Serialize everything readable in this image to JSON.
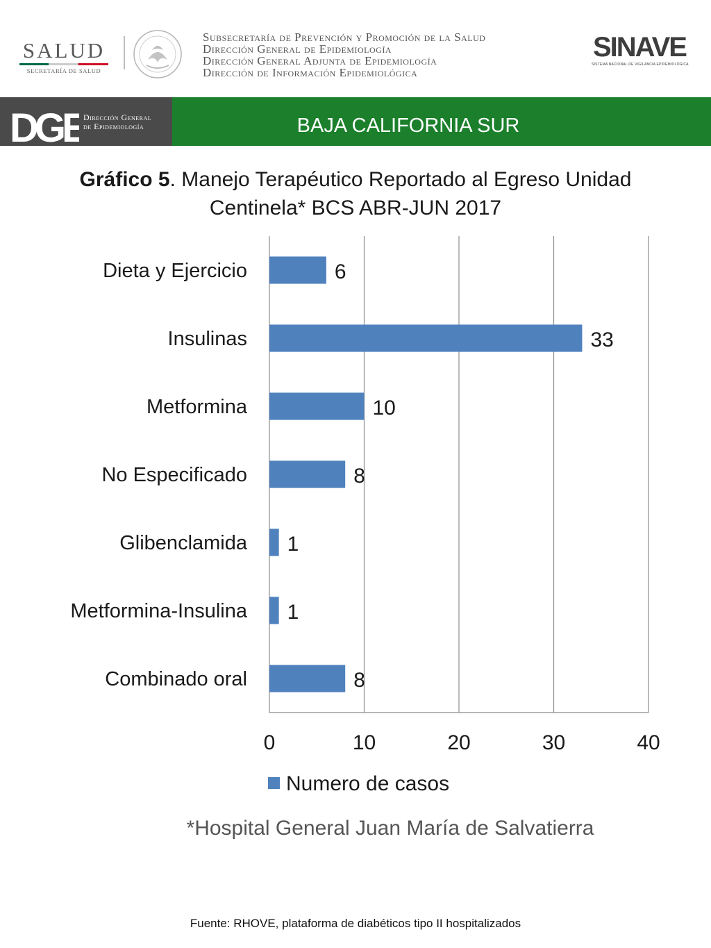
{
  "header": {
    "salud_logo": {
      "word": "SALUD",
      "sub": "SECRETARÍA DE SALUD"
    },
    "seal_icon": "mexican-coat-of-arms-seal-icon",
    "subsecretaria_lines": [
      "Subsecretaría de Prevención y Promoción de la Salud",
      "Dirección General de Epidemiología",
      "Dirección General Adjunta de Epidemiología",
      "Dirección de Información Epidemiológica"
    ],
    "sinave_logo": {
      "word": "SINAVE",
      "sub": "SISTEMA NACIONAL DE VIGILANCIA EPIDEMIOLÓGICA"
    }
  },
  "band": {
    "dge_letters": "DGE",
    "dge_line1": "Dirección General",
    "dge_line2": "de Epidemiología",
    "state": "BAJA CALIFORNIA SUR"
  },
  "title": {
    "bold": "Gráfico 5",
    "rest": ". Manejo Terapéutico Reportado al Egreso Unidad Centinela* BCS ABR-JUN 2017"
  },
  "chart_data": {
    "type": "bar",
    "orientation": "horizontal",
    "categories": [
      "Dieta y Ejercicio",
      "Insulinas",
      "Metformina",
      "No Especificado",
      "Glibenclamida",
      "Metformina-Insulina",
      "Combinado oral"
    ],
    "series": [
      {
        "name": "Numero de casos",
        "values": [
          6,
          33,
          10,
          8,
          1,
          1,
          8
        ],
        "color": "#4f81bd"
      }
    ],
    "xlim": [
      0,
      40
    ],
    "x_ticks": [
      0,
      10,
      20,
      30,
      40
    ],
    "grid": "vertical",
    "legend": "bottom"
  },
  "footnote": "*Hospital General Juan María de Salvatierra",
  "fuente": "Fuente: RHOVE, plataforma de diabéticos tipo II hospitalizados",
  "colors": {
    "green_band": "#1b7f2b",
    "dark_band": "#4a4a4a",
    "bar": "#4f81bd"
  }
}
